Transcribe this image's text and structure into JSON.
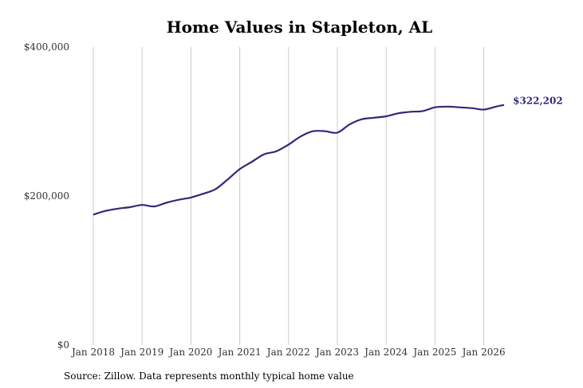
{
  "chart_data": {
    "type": "line",
    "title": "Home Values in Stapleton, AL",
    "source": "Source: Zillow. Data represents monthly typical home value",
    "xlabel": "",
    "ylabel": "",
    "ylim": [
      0,
      400000
    ],
    "y_ticks": [
      {
        "value": 0,
        "label": "$0"
      },
      {
        "value": 200000,
        "label": "$200,000"
      },
      {
        "value": 400000,
        "label": "$400,000"
      }
    ],
    "x_ticks": [
      "Jan 2018",
      "Jan 2019",
      "Jan 2020",
      "Jan 2021",
      "Jan 2022",
      "Jan 2023",
      "Jan 2024",
      "Jan 2025",
      "Jan 2026"
    ],
    "grid": "vertical",
    "line_color": "#2e2a7a",
    "end_label": "$322,202",
    "series": [
      {
        "x": [
          "2018-01",
          "2018-04",
          "2018-07",
          "2018-10",
          "2019-01",
          "2019-04",
          "2019-07",
          "2019-10",
          "2020-01",
          "2020-04",
          "2020-07",
          "2020-10",
          "2021-01",
          "2021-04",
          "2021-07",
          "2021-10",
          "2022-01",
          "2022-04",
          "2022-07",
          "2022-10",
          "2023-01",
          "2023-04",
          "2023-07",
          "2023-10",
          "2024-01",
          "2024-04",
          "2024-07",
          "2024-10",
          "2025-01",
          "2025-04",
          "2025-07",
          "2025-10",
          "2026-01",
          "2026-04",
          "2026-06"
        ],
        "values": [
          175000,
          180000,
          183000,
          185000,
          188000,
          186000,
          191000,
          195000,
          198000,
          203000,
          209000,
          222000,
          236000,
          246000,
          256000,
          260000,
          269000,
          280000,
          287000,
          287000,
          285000,
          296000,
          303000,
          305000,
          307000,
          311000,
          313000,
          314000,
          319000,
          320000,
          319000,
          318000,
          316000,
          320000,
          322202
        ]
      }
    ]
  }
}
